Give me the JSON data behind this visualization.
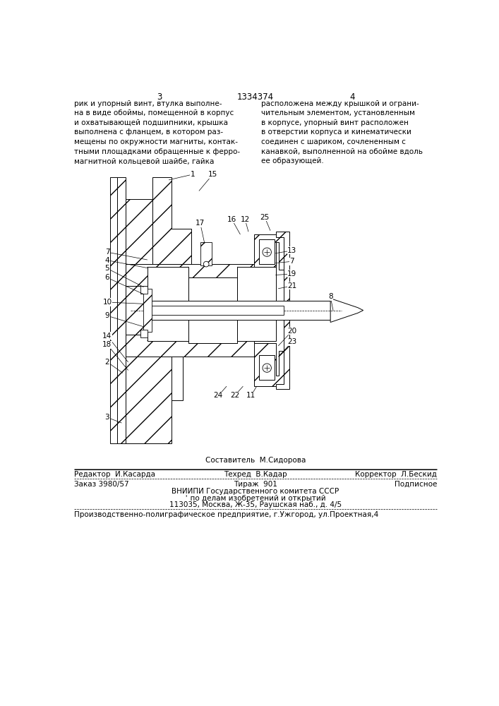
{
  "page_number_left": "3",
  "page_number_center": "1334374",
  "page_number_right": "4",
  "text_left": "рик и упорный винт, втулка выполне-\nна в виде обоймы, помещенной в корпус\nи охватывающей подшипники, крышка\nвыполнена с фланцем, в котором раз-\nмещены по окружности магниты, контак-\nтными площадками обращенные к ферро-\nмагнитной кольцевой шайбе, гайка",
  "text_right": "расположена между крышкой и ограни-\nчительным элементом, установленным\nв корпусе, упорный винт расположен\nв отверстии корпуса и кинематически\nсоединен с шариком, сочлененным с\nканавкой, выполненной на обойме вдоль\nее образующей.",
  "editor_label": "Редактор  И.Касарда",
  "composer_label": "Составитель  М.Сидорова",
  "corrector_label": "Корректор  Л.Бескид",
  "techred_label": "Техред  В.Кадар",
  "order_label": "Заказ 3980/57",
  "tirazh_label": "Тираж  901",
  "podpisnoe_label": "Подписное",
  "vniipи_line1": "ВНИИПИ Государственного комитета СССР",
  "vniipи_line2": "ʾ по делам изобретений и открытий",
  "vniipи_line3": "113035, Москва, Ж-35, Раушская наб., д. 4/5",
  "production_line": "Производственно-полиграфическое предприятие, г.Ужгород, ул.Проектная,4",
  "bg_color": "#ffffff",
  "text_color": "#000000"
}
